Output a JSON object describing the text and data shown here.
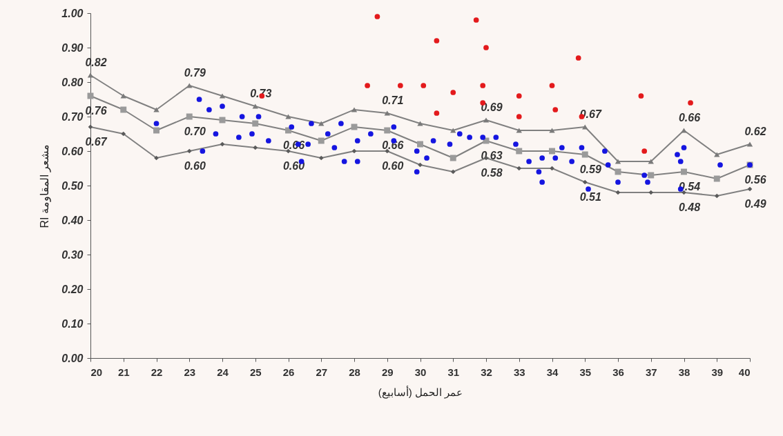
{
  "chart_data": {
    "type": "line",
    "xlabel": "عمر الحمل (أسابيع)",
    "ylabel": "مشعر المقاومة RI",
    "x": [
      20,
      21,
      22,
      23,
      24,
      25,
      26,
      27,
      28,
      29,
      30,
      31,
      32,
      33,
      34,
      35,
      36,
      37,
      38,
      39,
      40
    ],
    "xlim": [
      20,
      40
    ],
    "xticks": [
      20,
      21,
      22,
      23,
      24,
      25,
      26,
      27,
      28,
      29,
      30,
      31,
      32,
      33,
      34,
      35,
      36,
      37,
      38,
      39,
      40
    ],
    "ylim": [
      0,
      1
    ],
    "yticks": [
      {
        "value": 0,
        "label": "0.00"
      },
      {
        "value": 0.1,
        "label": "0.10"
      },
      {
        "value": 0.2,
        "label": "0.20"
      },
      {
        "value": 0.3,
        "label": "0.30"
      },
      {
        "value": 0.4,
        "label": "0.40"
      },
      {
        "value": 0.5,
        "label": "0.50"
      },
      {
        "value": 0.6,
        "label": "0.60"
      },
      {
        "value": 0.7,
        "label": "0.70"
      },
      {
        "value": 0.8,
        "label": "0.80"
      },
      {
        "value": 0.9,
        "label": "0.90"
      },
      {
        "value": 1,
        "label": "1.00"
      }
    ],
    "series": [
      {
        "marker": "triangle",
        "color": "#7a7a7a",
        "values": [
          0.82,
          0.76,
          0.72,
          0.79,
          0.76,
          0.73,
          0.7,
          0.68,
          0.72,
          0.71,
          0.68,
          0.66,
          0.69,
          0.66,
          0.66,
          0.67,
          0.57,
          0.57,
          0.66,
          0.59,
          0.62
        ],
        "value_labels": [
          "0.82",
          null,
          null,
          "0.79",
          null,
          "0.73",
          null,
          null,
          null,
          "0.71",
          null,
          null,
          "0.69",
          null,
          null,
          "0.67",
          null,
          null,
          "0.66",
          null,
          "0.62"
        ]
      },
      {
        "marker": "square",
        "color": "#9a9a9a",
        "values": [
          0.76,
          0.72,
          0.66,
          0.7,
          0.69,
          0.68,
          0.66,
          0.63,
          0.67,
          0.66,
          0.62,
          0.58,
          0.63,
          0.6,
          0.6,
          0.59,
          0.54,
          0.53,
          0.54,
          0.52,
          0.56
        ],
        "value_labels": [
          "0.76",
          null,
          null,
          "0.70",
          null,
          null,
          "0.66",
          null,
          null,
          "0.66",
          null,
          null,
          "0.63",
          null,
          null,
          "0.59",
          null,
          null,
          "0.54",
          null,
          "0.56"
        ]
      },
      {
        "marker": "diamond",
        "color": "#5a5a5a",
        "values": [
          0.67,
          0.65,
          0.58,
          0.6,
          0.62,
          0.61,
          0.6,
          0.58,
          0.6,
          0.6,
          0.56,
          0.54,
          0.58,
          0.55,
          0.55,
          0.51,
          0.48,
          0.48,
          0.48,
          0.47,
          0.49
        ],
        "value_labels": [
          "0.67",
          null,
          null,
          "0.60",
          null,
          null,
          "0.60",
          null,
          null,
          "0.60",
          null,
          null,
          "0.58",
          null,
          null,
          "0.51",
          null,
          null,
          "0.48",
          null,
          "0.49"
        ]
      },
      {
        "type": "scatter",
        "marker": "circle",
        "color": "#1515e0",
        "x": [
          23.3,
          23.6,
          24.0,
          22.0,
          24.6,
          25.1,
          23.8,
          23.4,
          24.5,
          24.9,
          25.4,
          26.1,
          26.7,
          26.3,
          26.6,
          26.4,
          27.2,
          27.6,
          27.4,
          27.7,
          28.1,
          28.1,
          28.5,
          29.2,
          29.2,
          29.9,
          30.2,
          29.9,
          30.4,
          30.9,
          31.2,
          31.5,
          31.9,
          32.3,
          32.9,
          33.3,
          33.7,
          33.6,
          33.7,
          34.3,
          34.1,
          34.6,
          34.9,
          35.1,
          35.6,
          35.7,
          36.0,
          36.8,
          36.9,
          37.8,
          37.9,
          38.0,
          37.9,
          39.1,
          40.0
        ],
        "values": [
          0.75,
          0.72,
          0.73,
          0.68,
          0.7,
          0.7,
          0.65,
          0.6,
          0.64,
          0.65,
          0.63,
          0.67,
          0.68,
          0.62,
          0.62,
          0.57,
          0.65,
          0.68,
          0.61,
          0.57,
          0.63,
          0.57,
          0.65,
          0.67,
          0.63,
          0.6,
          0.58,
          0.54,
          0.63,
          0.62,
          0.65,
          0.64,
          0.64,
          0.64,
          0.62,
          0.57,
          0.58,
          0.54,
          0.51,
          0.61,
          0.58,
          0.57,
          0.61,
          0.49,
          0.6,
          0.56,
          0.51,
          0.53,
          0.51,
          0.59,
          0.57,
          0.61,
          0.49,
          0.56,
          0.56
        ]
      },
      {
        "type": "scatter",
        "marker": "circle",
        "color": "#e31a1c",
        "x": [
          25.2,
          28.4,
          28.7,
          29.4,
          30.1,
          30.5,
          30.5,
          31.0,
          31.7,
          31.9,
          31.9,
          32.0,
          33.0,
          33.0,
          34.0,
          34.1,
          34.8,
          34.9,
          36.7,
          36.8,
          38.2
        ],
        "values": [
          0.76,
          0.79,
          0.99,
          0.79,
          0.79,
          0.92,
          0.71,
          0.77,
          0.98,
          0.79,
          0.74,
          0.9,
          0.76,
          0.7,
          0.79,
          0.72,
          0.87,
          0.7,
          0.76,
          0.6,
          0.74
        ]
      }
    ]
  }
}
